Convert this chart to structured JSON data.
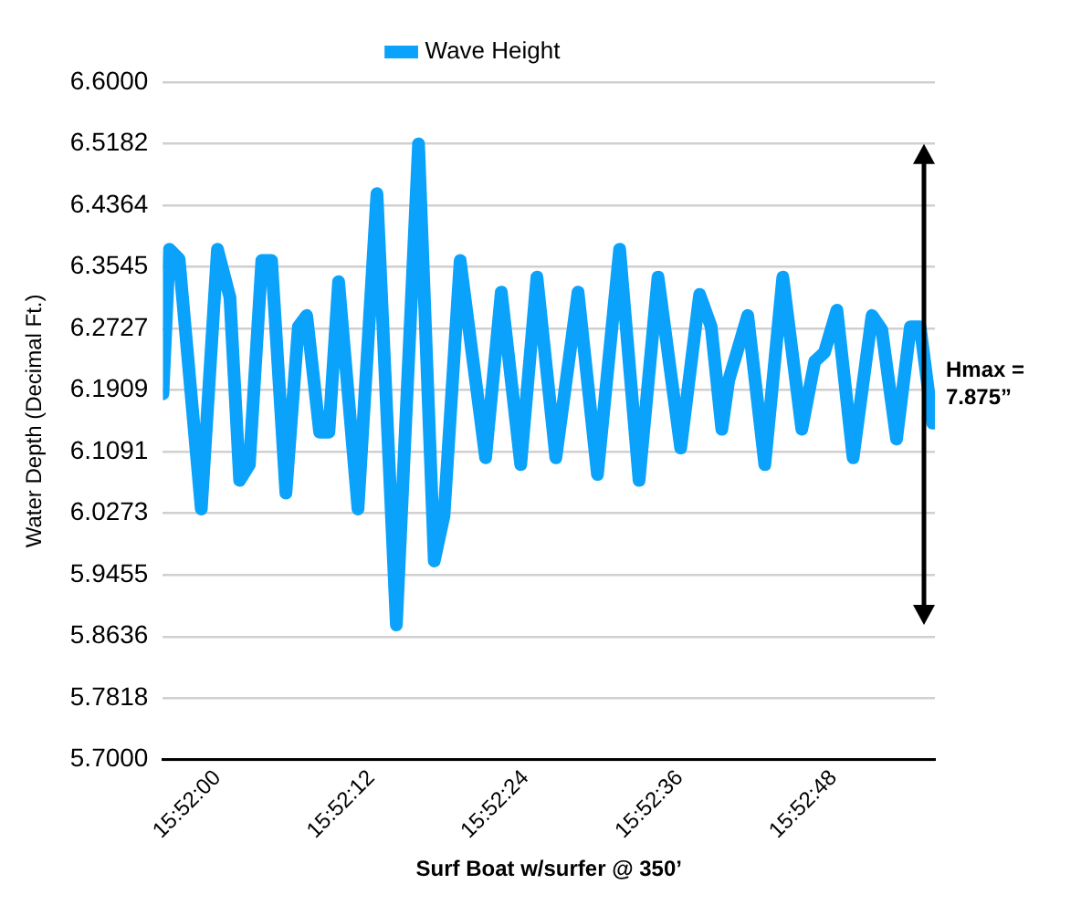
{
  "chart_data": {
    "type": "line",
    "xlabel": "Surf Boat w/surfer @ 350’",
    "ylabel": "Water Depth (Decimal Ft.)",
    "x": [
      15.86549,
      15.86563,
      15.86584,
      15.86632,
      15.86667,
      15.86694,
      15.86715,
      15.86736,
      15.86763,
      15.86784,
      15.86815,
      15.86842,
      15.8686,
      15.86888,
      15.86908,
      15.86929,
      15.86971,
      15.87012,
      15.87054,
      15.87102,
      15.87136,
      15.87157,
      15.87192,
      15.87247,
      15.87281,
      15.87323,
      15.87358,
      15.87399,
      15.87447,
      15.87489,
      15.87537,
      15.87579,
      15.8762,
      15.87669,
      15.8771,
      15.87735,
      15.87758,
      15.87773,
      15.87814,
      15.87851,
      15.8789,
      15.87931,
      15.87959,
      15.8798,
      15.88007,
      15.88042,
      15.88083,
      15.88104,
      15.88136,
      15.88166,
      15.88187,
      15.88214
    ],
    "series": [
      {
        "name": "Wave Height",
        "color": "#0aa2fa",
        "values": [
          6.186,
          6.378,
          6.365,
          6.033,
          6.378,
          6.314,
          6.071,
          6.092,
          6.363,
          6.363,
          6.054,
          6.275,
          6.29,
          6.135,
          6.135,
          6.335,
          6.033,
          6.452,
          5.879,
          6.518,
          5.964,
          6.024,
          6.363,
          6.101,
          6.321,
          6.092,
          6.341,
          6.101,
          6.321,
          6.079,
          6.378,
          6.071,
          6.341,
          6.114,
          6.318,
          6.275,
          6.139,
          6.204,
          6.29,
          6.092,
          6.341,
          6.139,
          6.229,
          6.241,
          6.297,
          6.101,
          6.29,
          6.271,
          6.126,
          6.275,
          6.275,
          6.147
        ]
      }
    ],
    "xlim": [
      15.86549,
      15.88219
    ],
    "xticks": [
      {
        "value": 15.86667,
        "label": "15:52:00"
      },
      {
        "value": 15.87,
        "label": "15:52:12"
      },
      {
        "value": 15.87333,
        "label": "15:52:24"
      },
      {
        "value": 15.87667,
        "label": "15:52:36"
      },
      {
        "value": 15.88,
        "label": "15:52:48"
      }
    ],
    "ylim": [
      5.7,
      6.6
    ],
    "yticks": [
      {
        "value": 6.6,
        "label": "6.6000"
      },
      6.5182,
      6.4364,
      6.3545,
      6.2727,
      6.1909,
      6.1091,
      6.0273,
      5.9455,
      5.8636,
      5.7818,
      {
        "value": 5.7,
        "label": "5.7000"
      }
    ],
    "annotations": [
      "Hmax =\n7.875”"
    ],
    "grid": "y",
    "legend": "top",
    "marker": "none",
    "line_style": "solid"
  }
}
